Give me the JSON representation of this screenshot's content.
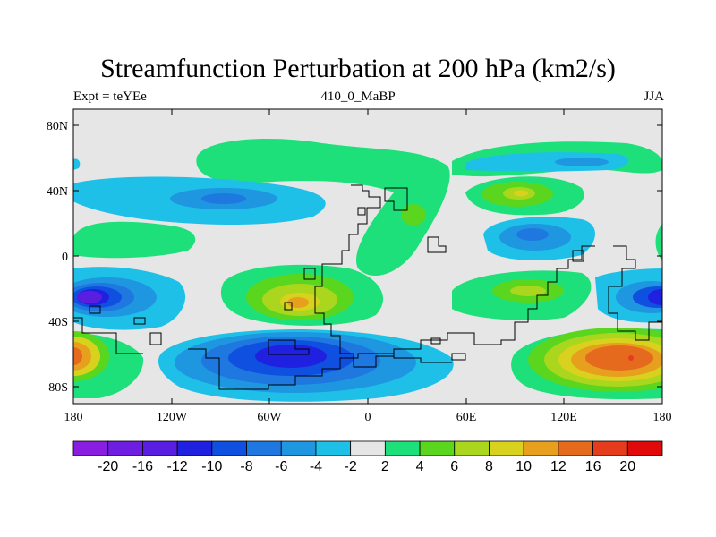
{
  "title": "Streamfunction Perturbation at 200 hPa (km2/s)",
  "subtitle_left": "Expt = teYEe",
  "subtitle_center": "410_0_MaBP",
  "subtitle_right": "JJA",
  "y_ticks": [
    "80N",
    "40N",
    "0",
    "40S",
    "80S"
  ],
  "x_ticks": [
    "180",
    "120W",
    "60W",
    "0",
    "60E",
    "120E",
    "180"
  ],
  "colorbar": {
    "colors": [
      "#8a1ee0",
      "#6e1ee0",
      "#5a1ee0",
      "#2020e0",
      "#1050e0",
      "#1e78e0",
      "#1e96e0",
      "#1ec0e8",
      "#e6e6e6",
      "#1ee07a",
      "#5ad61e",
      "#aad61e",
      "#d8d21e",
      "#e6a01e",
      "#e66a1e",
      "#e63c1e",
      "#e00a0a"
    ],
    "labels": [
      "-20",
      "-16",
      "-12",
      "-10",
      "-8",
      "-6",
      "-4",
      "-2",
      "2",
      "4",
      "6",
      "8",
      "10",
      "12",
      "16",
      "20"
    ]
  },
  "colors": {
    "background_field": "#e6e6e6",
    "coastline": "#000000"
  }
}
